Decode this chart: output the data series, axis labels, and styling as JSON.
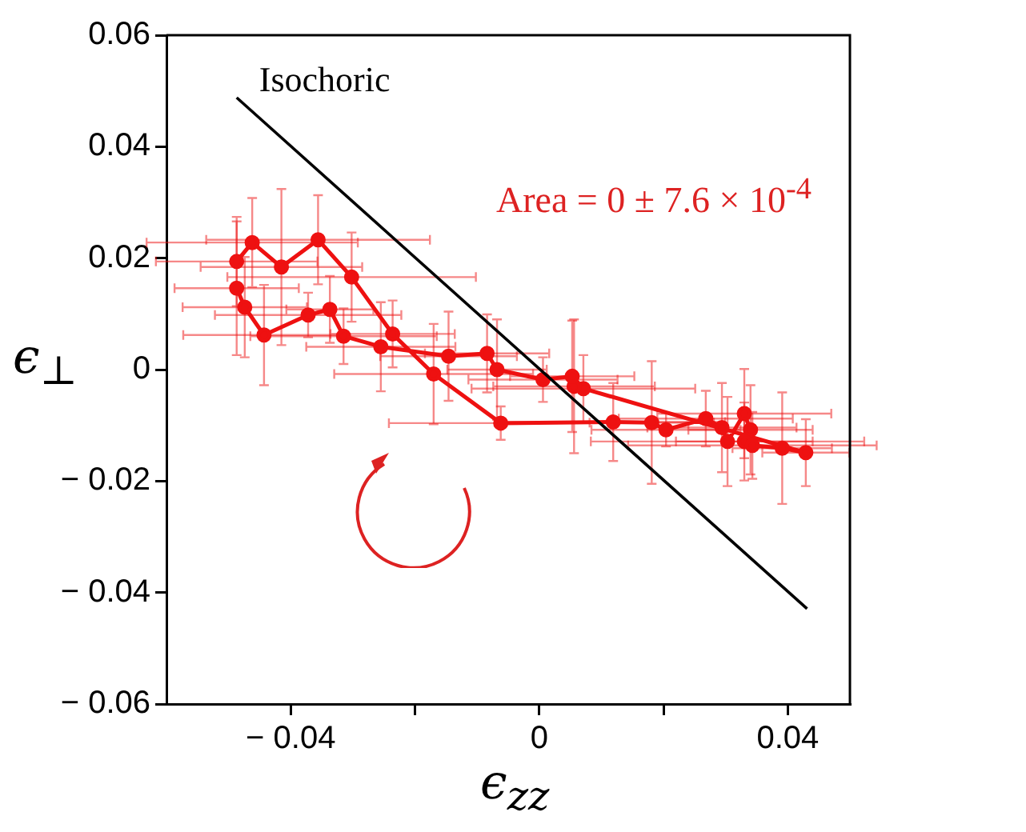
{
  "chart_data": {
    "type": "line",
    "xlabel": "ϵ$_{zz}$",
    "ylabel": "ϵ$_{⊥}$",
    "xlim": [
      -0.06,
      0.05
    ],
    "xticks": [
      {
        "value": -0.04,
        "label": "− 0.04"
      },
      {
        "value": -0.02,
        "label": null
      },
      {
        "value": 0,
        "label": "0"
      },
      {
        "value": 0.02,
        "label": null
      },
      {
        "value": 0.04,
        "label": "0.04"
      }
    ],
    "ylim": [
      -0.06,
      0.06
    ],
    "yticks": [
      {
        "value": -0.06,
        "label": "− 0.06"
      },
      {
        "value": -0.04,
        "label": "− 0.04"
      },
      {
        "value": -0.02,
        "label": "− 0.02"
      },
      {
        "value": 0,
        "label": "0"
      },
      {
        "value": 0.02,
        "label": "0.02"
      },
      {
        "value": 0.04,
        "label": "0.04"
      },
      {
        "value": 0.06,
        "label": "0.06"
      }
    ],
    "marker": "circle",
    "line_style": "solid",
    "legend": false,
    "annotations": [
      "Area = 0 ± 7.6 × 10$^{-4}$"
    ],
    "series": [
      {
        "type": "line",
        "name": "Isochoric",
        "color": "#000000",
        "marker": "none",
        "x": [
          -0.0487,
          0.0431
        ],
        "values": [
          0.0488,
          -0.0429
        ]
      },
      {
        "color": "#ee1111",
        "x": [
          -0.0487,
          -0.0462,
          -0.0415,
          -0.0356,
          -0.0302,
          -0.0236,
          -0.017,
          -0.0062,
          0.0119,
          0.0181,
          0.0204,
          0.0268,
          0.0294,
          0.0303,
          0.033,
          0.034,
          0.033,
          0.0343,
          0.0391,
          0.0429,
          0.0071,
          0.0056,
          0.0053,
          0.0006,
          -0.0068,
          -0.0084,
          -0.0146,
          -0.0255,
          -0.0315,
          -0.0337,
          -0.0372,
          -0.0443,
          -0.0474,
          -0.0487
        ],
        "values": [
          0.0194,
          0.0228,
          0.0184,
          0.0233,
          0.0166,
          0.0064,
          -0.0008,
          -0.0096,
          -0.0094,
          -0.0095,
          -0.0108,
          -0.0088,
          -0.0104,
          -0.0129,
          -0.0079,
          -0.0108,
          -0.0129,
          -0.0136,
          -0.0141,
          -0.0149,
          -0.0034,
          -0.003,
          -0.0012,
          -0.0018,
          0,
          0.0029,
          0.0024,
          0.0041,
          0.006,
          0.0108,
          0.0098,
          0.0062,
          0.0112,
          0.0146
        ],
        "errors": [
          0.008,
          0.008,
          0.014,
          0.008,
          0.008,
          0.006,
          0.009,
          0.003,
          0.007,
          0.011,
          0.003,
          0.005,
          0.008,
          0.008,
          0.008,
          0.008,
          0.007,
          0.006,
          0.01,
          0.006,
          0.006,
          0.012,
          0.01,
          0.004,
          0.009,
          0.007,
          0.008,
          0.008,
          0.005,
          0.006,
          0.004,
          0.009,
          0.009,
          0.012
        ],
        "xerrors": [
          0.013,
          0.017,
          0.013,
          0.018,
          0.02,
          0.01,
          0.016,
          0.018,
          0.018,
          0.01,
          0.012,
          0.014,
          0.012,
          0.022,
          0.014,
          0.01,
          0.011,
          0.02,
          0.008,
          0.007,
          0.018,
          0.013,
          0.01,
          0.012,
          0.008,
          0.01,
          0.011,
          0.012,
          0.015,
          0.007,
          0.015,
          0.013,
          0.01,
          0.01
        ]
      }
    ]
  }
}
